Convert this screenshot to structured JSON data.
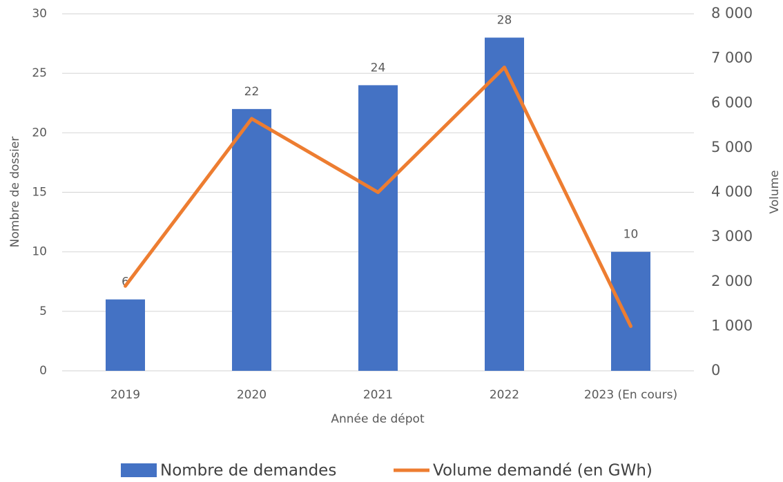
{
  "chart_data": {
    "type": "bar",
    "xlabel": "Année de dépot",
    "ylabel": "Nombre de dossier",
    "y2label": "Volume",
    "categories": [
      "2019",
      "2020",
      "2021",
      "2022",
      "2023 (En cours)"
    ],
    "series": [
      {
        "name": "Nombre de demandes",
        "type": "bar",
        "color": "#4472c4",
        "values": [
          6,
          22,
          24,
          28,
          10
        ]
      },
      {
        "name": "Volume demandé (en GWh)",
        "type": "line",
        "axis": "y2",
        "color": "#ed7d31",
        "values": [
          1900,
          5650,
          4000,
          6800,
          1000
        ]
      }
    ],
    "ylim": [
      0,
      30
    ],
    "yticks": [
      0,
      5,
      10,
      15,
      20,
      25,
      30
    ],
    "y2lim": [
      0,
      8000
    ],
    "y2ticks": [
      0,
      {
        "value": 1000,
        "label": "1 000"
      },
      {
        "value": 2000,
        "label": "2 000"
      },
      {
        "value": 3000,
        "label": "3 000"
      },
      {
        "value": 4000,
        "label": "4 000"
      },
      {
        "value": 5000,
        "label": "5 000"
      },
      {
        "value": 6000,
        "label": "6 000"
      },
      {
        "value": 7000,
        "label": "7 000"
      },
      {
        "value": 8000,
        "label": "8 000"
      }
    ],
    "grid": true,
    "legend": "bottom"
  }
}
